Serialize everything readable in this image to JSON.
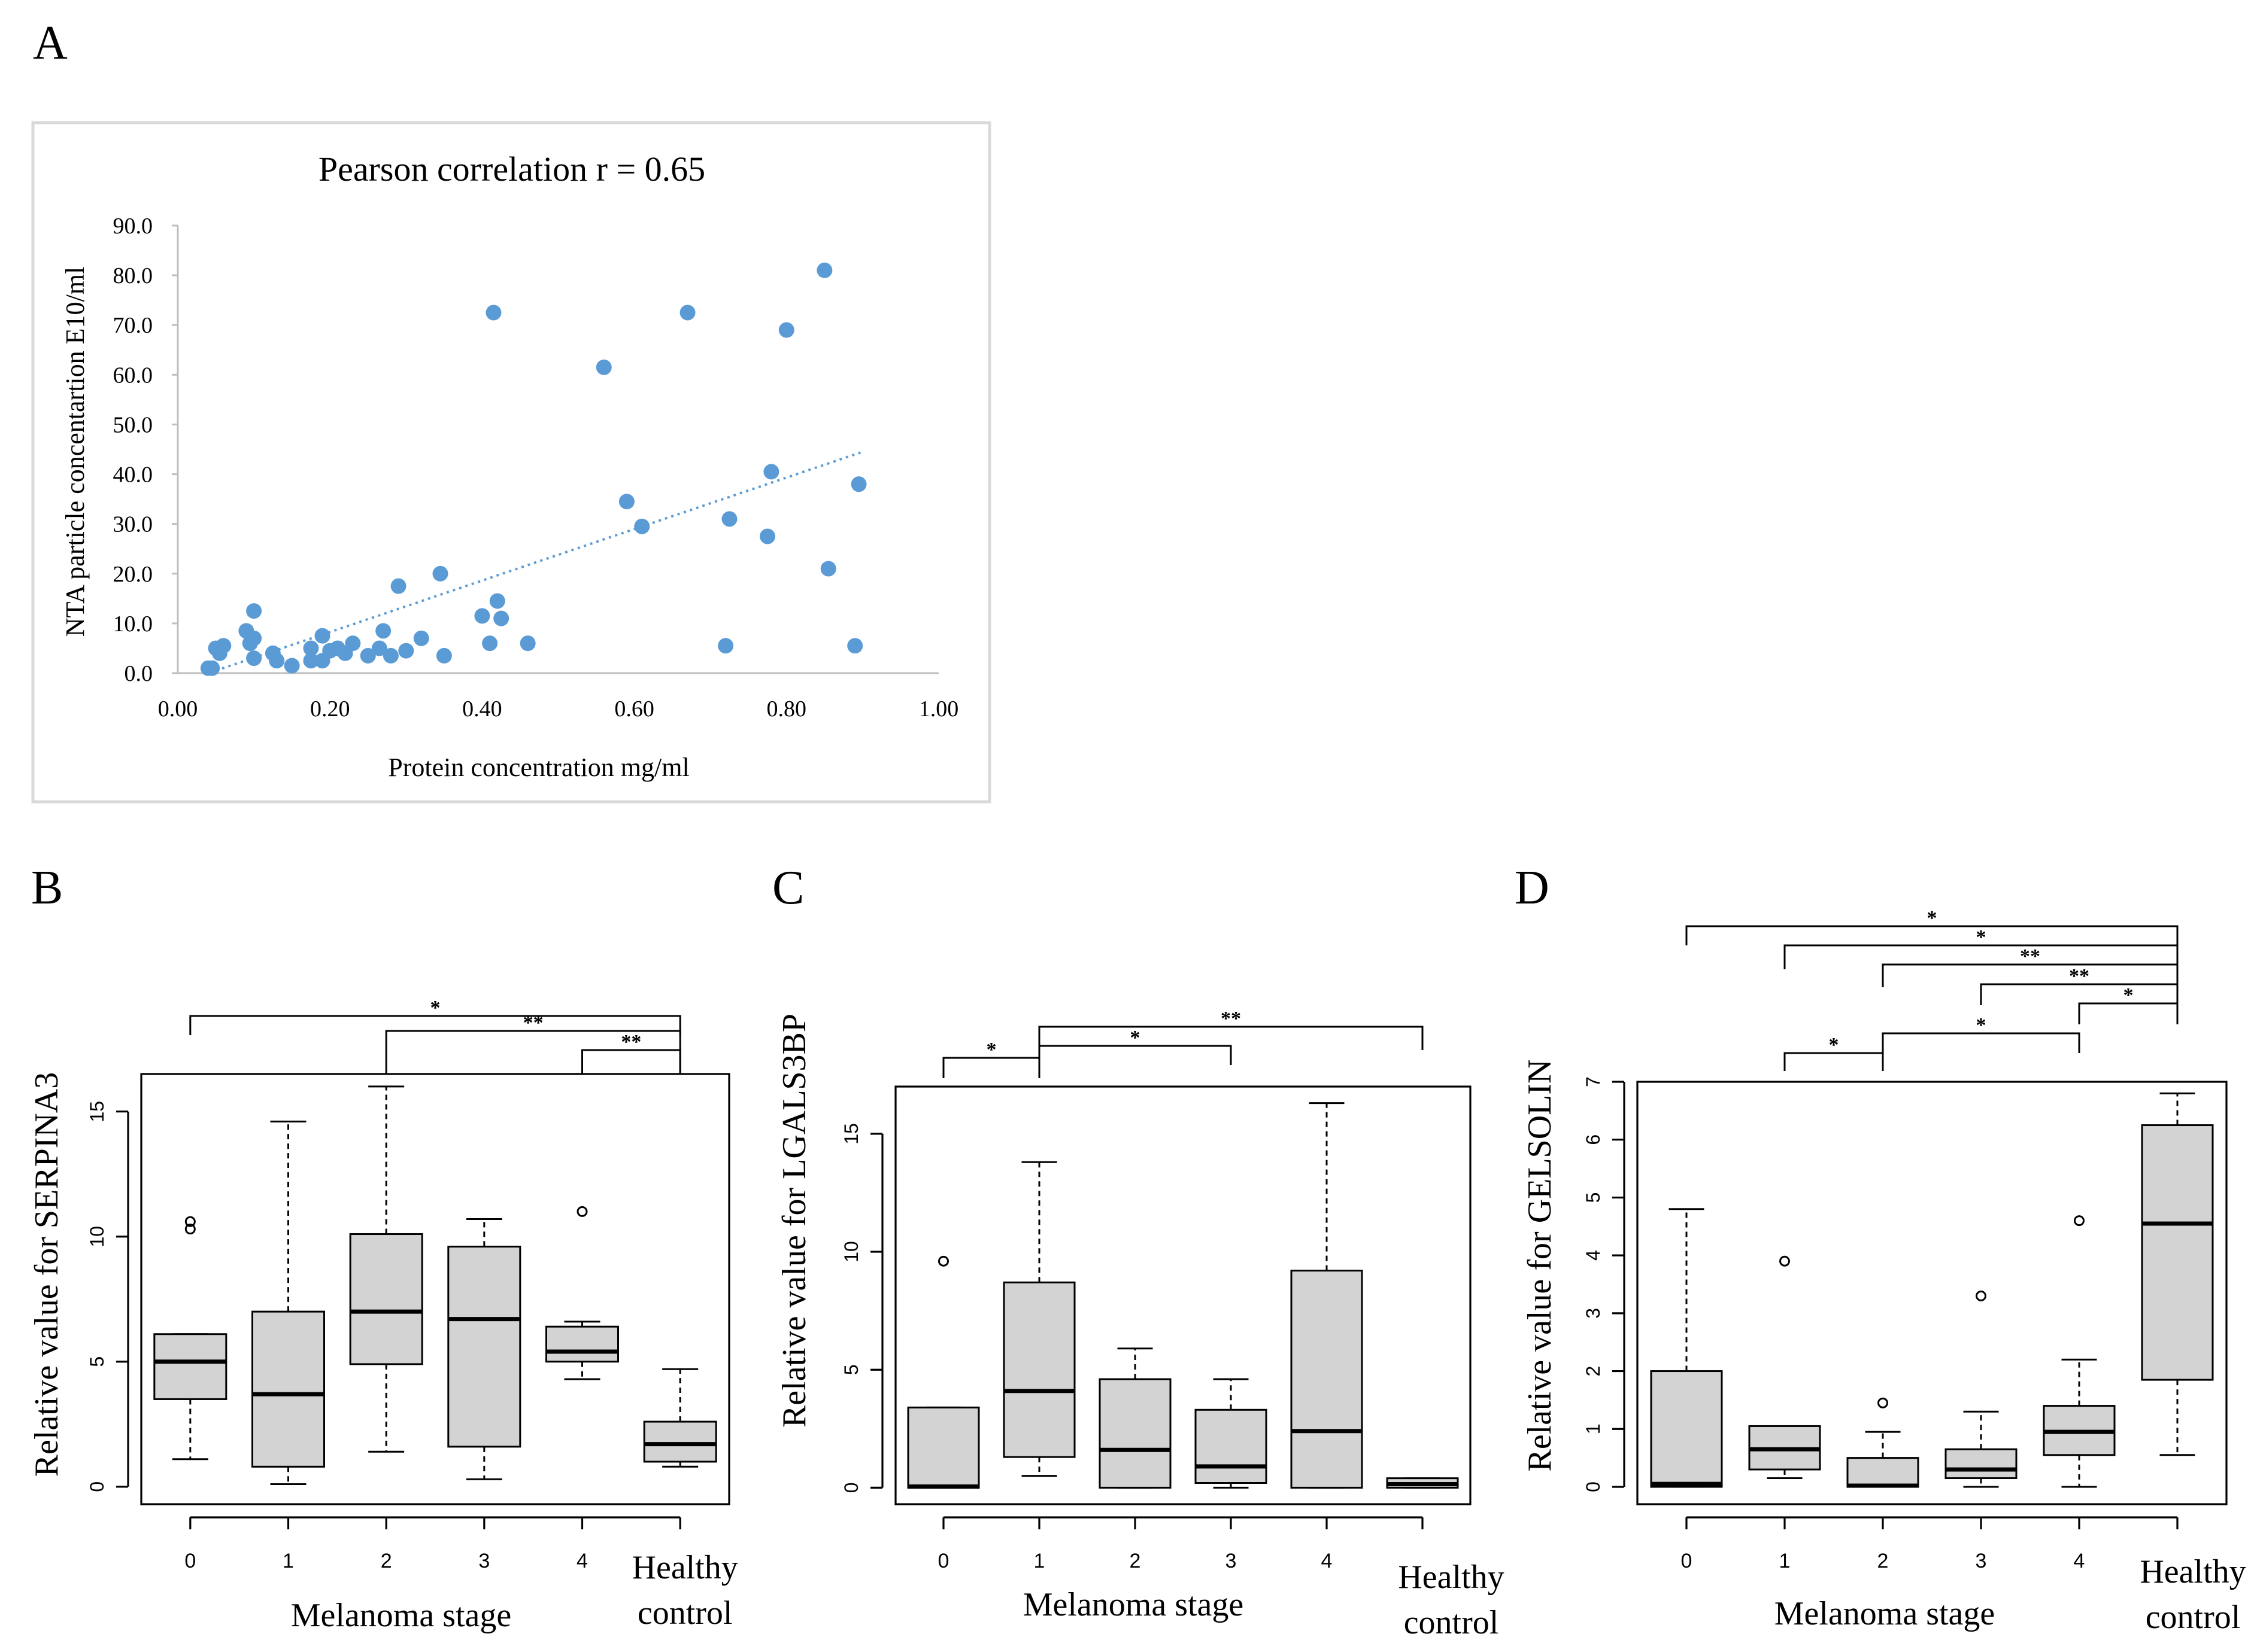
{
  "chart_data": [
    {
      "panel_label": "A",
      "type": "scatter",
      "title": "Pearson correlation r = 0.65",
      "xlabel": "Protein concentration mg/ml",
      "ylabel": "NTA particle concentartion E10/ml",
      "xlim": [
        0.0,
        1.0
      ],
      "ylim": [
        0.0,
        90.0
      ],
      "x_ticks": [
        "0.00",
        "0.20",
        "0.40",
        "0.60",
        "0.80",
        "1.00"
      ],
      "y_ticks": [
        "0.0",
        "10.0",
        "20.0",
        "30.0",
        "40.0",
        "50.0",
        "60.0",
        "70.0",
        "80.0",
        "90.0"
      ],
      "points": [
        [
          0.04,
          1.0
        ],
        [
          0.045,
          1.0
        ],
        [
          0.05,
          5.0
        ],
        [
          0.055,
          4.0
        ],
        [
          0.06,
          5.5
        ],
        [
          0.09,
          8.5
        ],
        [
          0.095,
          6.0
        ],
        [
          0.1,
          3.0
        ],
        [
          0.1,
          7.0
        ],
        [
          0.1,
          12.5
        ],
        [
          0.125,
          4.0
        ],
        [
          0.13,
          2.5
        ],
        [
          0.15,
          1.5
        ],
        [
          0.175,
          2.5
        ],
        [
          0.175,
          5.0
        ],
        [
          0.19,
          7.5
        ],
        [
          0.19,
          2.5
        ],
        [
          0.2,
          4.5
        ],
        [
          0.21,
          5.0
        ],
        [
          0.22,
          4.0
        ],
        [
          0.23,
          6.0
        ],
        [
          0.25,
          3.5
        ],
        [
          0.265,
          5.0
        ],
        [
          0.27,
          8.5
        ],
        [
          0.28,
          3.5
        ],
        [
          0.29,
          17.5
        ],
        [
          0.3,
          4.5
        ],
        [
          0.32,
          7.0
        ],
        [
          0.345,
          20.0
        ],
        [
          0.35,
          3.5
        ],
        [
          0.4,
          11.5
        ],
        [
          0.41,
          6.0
        ],
        [
          0.42,
          14.5
        ],
        [
          0.425,
          11.0
        ],
        [
          0.46,
          6.0
        ],
        [
          0.415,
          72.5
        ],
        [
          0.56,
          61.5
        ],
        [
          0.59,
          34.5
        ],
        [
          0.61,
          29.5
        ],
        [
          0.67,
          72.5
        ],
        [
          0.72,
          5.5
        ],
        [
          0.725,
          31.0
        ],
        [
          0.775,
          27.5
        ],
        [
          0.78,
          40.5
        ],
        [
          0.8,
          69.0
        ],
        [
          0.85,
          81.0
        ],
        [
          0.855,
          21.0
        ],
        [
          0.89,
          5.5
        ],
        [
          0.895,
          38.0
        ]
      ],
      "trendline": {
        "style": "dotted",
        "x": [
          0.05,
          0.9
        ],
        "y": [
          0.5,
          44.5
        ]
      }
    },
    {
      "panel_label": "B",
      "type": "boxplot",
      "ylabel": "Relative value for SERPINA3",
      "xlabel": "Melanoma stage",
      "categories": [
        "0",
        "1",
        "2",
        "3",
        "4",
        "Healthy\ncontrol"
      ],
      "y_ticks": [
        0,
        5,
        10,
        15
      ],
      "ylim": [
        -0.7,
        16.5
      ],
      "boxes": [
        {
          "min": 1.1,
          "q1": 3.5,
          "median": 5.0,
          "q3": 6.1,
          "max": 6.1,
          "outliers": [
            10.3,
            10.6
          ]
        },
        {
          "min": 0.1,
          "q1": 0.8,
          "median": 3.7,
          "q3": 7.0,
          "max": 14.6,
          "outliers": []
        },
        {
          "min": 1.4,
          "q1": 4.9,
          "median": 7.0,
          "q3": 10.1,
          "max": 16.0,
          "outliers": []
        },
        {
          "min": 0.3,
          "q1": 1.6,
          "median": 6.7,
          "q3": 9.6,
          "max": 10.7,
          "outliers": []
        },
        {
          "min": 4.3,
          "q1": 5.0,
          "median": 5.4,
          "q3": 6.4,
          "max": 6.6,
          "outliers": [
            11.0
          ]
        },
        {
          "min": 0.8,
          "q1": 1.0,
          "median": 1.7,
          "q3": 2.6,
          "max": 4.7,
          "outliers": []
        }
      ],
      "brackets": [
        {
          "from": "0",
          "to": "Healthy control",
          "label": "*"
        },
        {
          "from": "2",
          "to": "Healthy control",
          "label": "**"
        },
        {
          "from": "4",
          "to": "Healthy control",
          "label": "**"
        }
      ]
    },
    {
      "panel_label": "C",
      "type": "boxplot",
      "ylabel": "Relative value for LGALS3BP",
      "xlabel": "Melanoma stage",
      "categories": [
        "0",
        "1",
        "2",
        "3",
        "4",
        "Healthy\ncontrol"
      ],
      "y_ticks": [
        0,
        5,
        10,
        15
      ],
      "ylim": [
        -0.7,
        17.0
      ],
      "boxes": [
        {
          "min": 0.0,
          "q1": 0.0,
          "median": 0.05,
          "q3": 3.4,
          "max": 3.4,
          "outliers": [
            9.6
          ]
        },
        {
          "min": 0.5,
          "q1": 1.3,
          "median": 4.1,
          "q3": 8.7,
          "max": 13.8,
          "outliers": []
        },
        {
          "min": 0.0,
          "q1": 0.0,
          "median": 1.6,
          "q3": 4.6,
          "max": 5.9,
          "outliers": []
        },
        {
          "min": 0.0,
          "q1": 0.2,
          "median": 0.9,
          "q3": 3.3,
          "max": 4.6,
          "outliers": []
        },
        {
          "min": 0.0,
          "q1": 0.0,
          "median": 2.4,
          "q3": 9.2,
          "max": 16.3,
          "outliers": []
        },
        {
          "min": 0.0,
          "q1": 0.0,
          "median": 0.15,
          "q3": 0.4,
          "max": 0.4,
          "outliers": []
        }
      ],
      "brackets": [
        {
          "from": "0",
          "to": "1",
          "label": "*"
        },
        {
          "from": "1",
          "to": "3",
          "label": "*"
        },
        {
          "from": "1",
          "to": "Healthy control",
          "label": "**"
        }
      ]
    },
    {
      "panel_label": "D",
      "type": "boxplot",
      "ylabel": "Relative value for GELSOLIN",
      "xlabel": "Melanoma stage",
      "categories": [
        "0",
        "1",
        "2",
        "3",
        "4",
        "Healthy\ncontrol"
      ],
      "y_ticks": [
        0,
        1,
        2,
        3,
        4,
        5,
        6,
        7
      ],
      "ylim": [
        -0.3,
        7.0
      ],
      "boxes": [
        {
          "min": 0.0,
          "q1": 0.0,
          "median": 0.05,
          "q3": 2.0,
          "max": 4.8,
          "outliers": []
        },
        {
          "min": 0.15,
          "q1": 0.3,
          "median": 0.65,
          "q3": 1.05,
          "max": 1.05,
          "outliers": [
            3.9
          ]
        },
        {
          "min": 0.0,
          "q1": 0.0,
          "median": 0.02,
          "q3": 0.5,
          "max": 0.95,
          "outliers": [
            1.45
          ]
        },
        {
          "min": 0.0,
          "q1": 0.15,
          "median": 0.3,
          "q3": 0.65,
          "max": 1.3,
          "outliers": [
            3.3
          ]
        },
        {
          "min": 0.0,
          "q1": 0.55,
          "median": 0.95,
          "q3": 1.4,
          "max": 2.2,
          "outliers": [
            4.6
          ]
        },
        {
          "min": 0.55,
          "q1": 1.85,
          "median": 4.55,
          "q3": 6.25,
          "max": 6.8,
          "outliers": []
        }
      ],
      "brackets": [
        {
          "from": "0",
          "to": "Healthy control",
          "label": "*"
        },
        {
          "from": "1",
          "to": "Healthy control",
          "label": "*"
        },
        {
          "from": "2",
          "to": "Healthy control",
          "label": "**"
        },
        {
          "from": "3",
          "to": "Healthy control",
          "label": "**"
        },
        {
          "from": "4",
          "to": "Healthy control",
          "label": "*"
        },
        {
          "from": "1",
          "to": "2",
          "label": "*"
        },
        {
          "from": "2",
          "to": "4",
          "label": "*"
        }
      ]
    }
  ]
}
